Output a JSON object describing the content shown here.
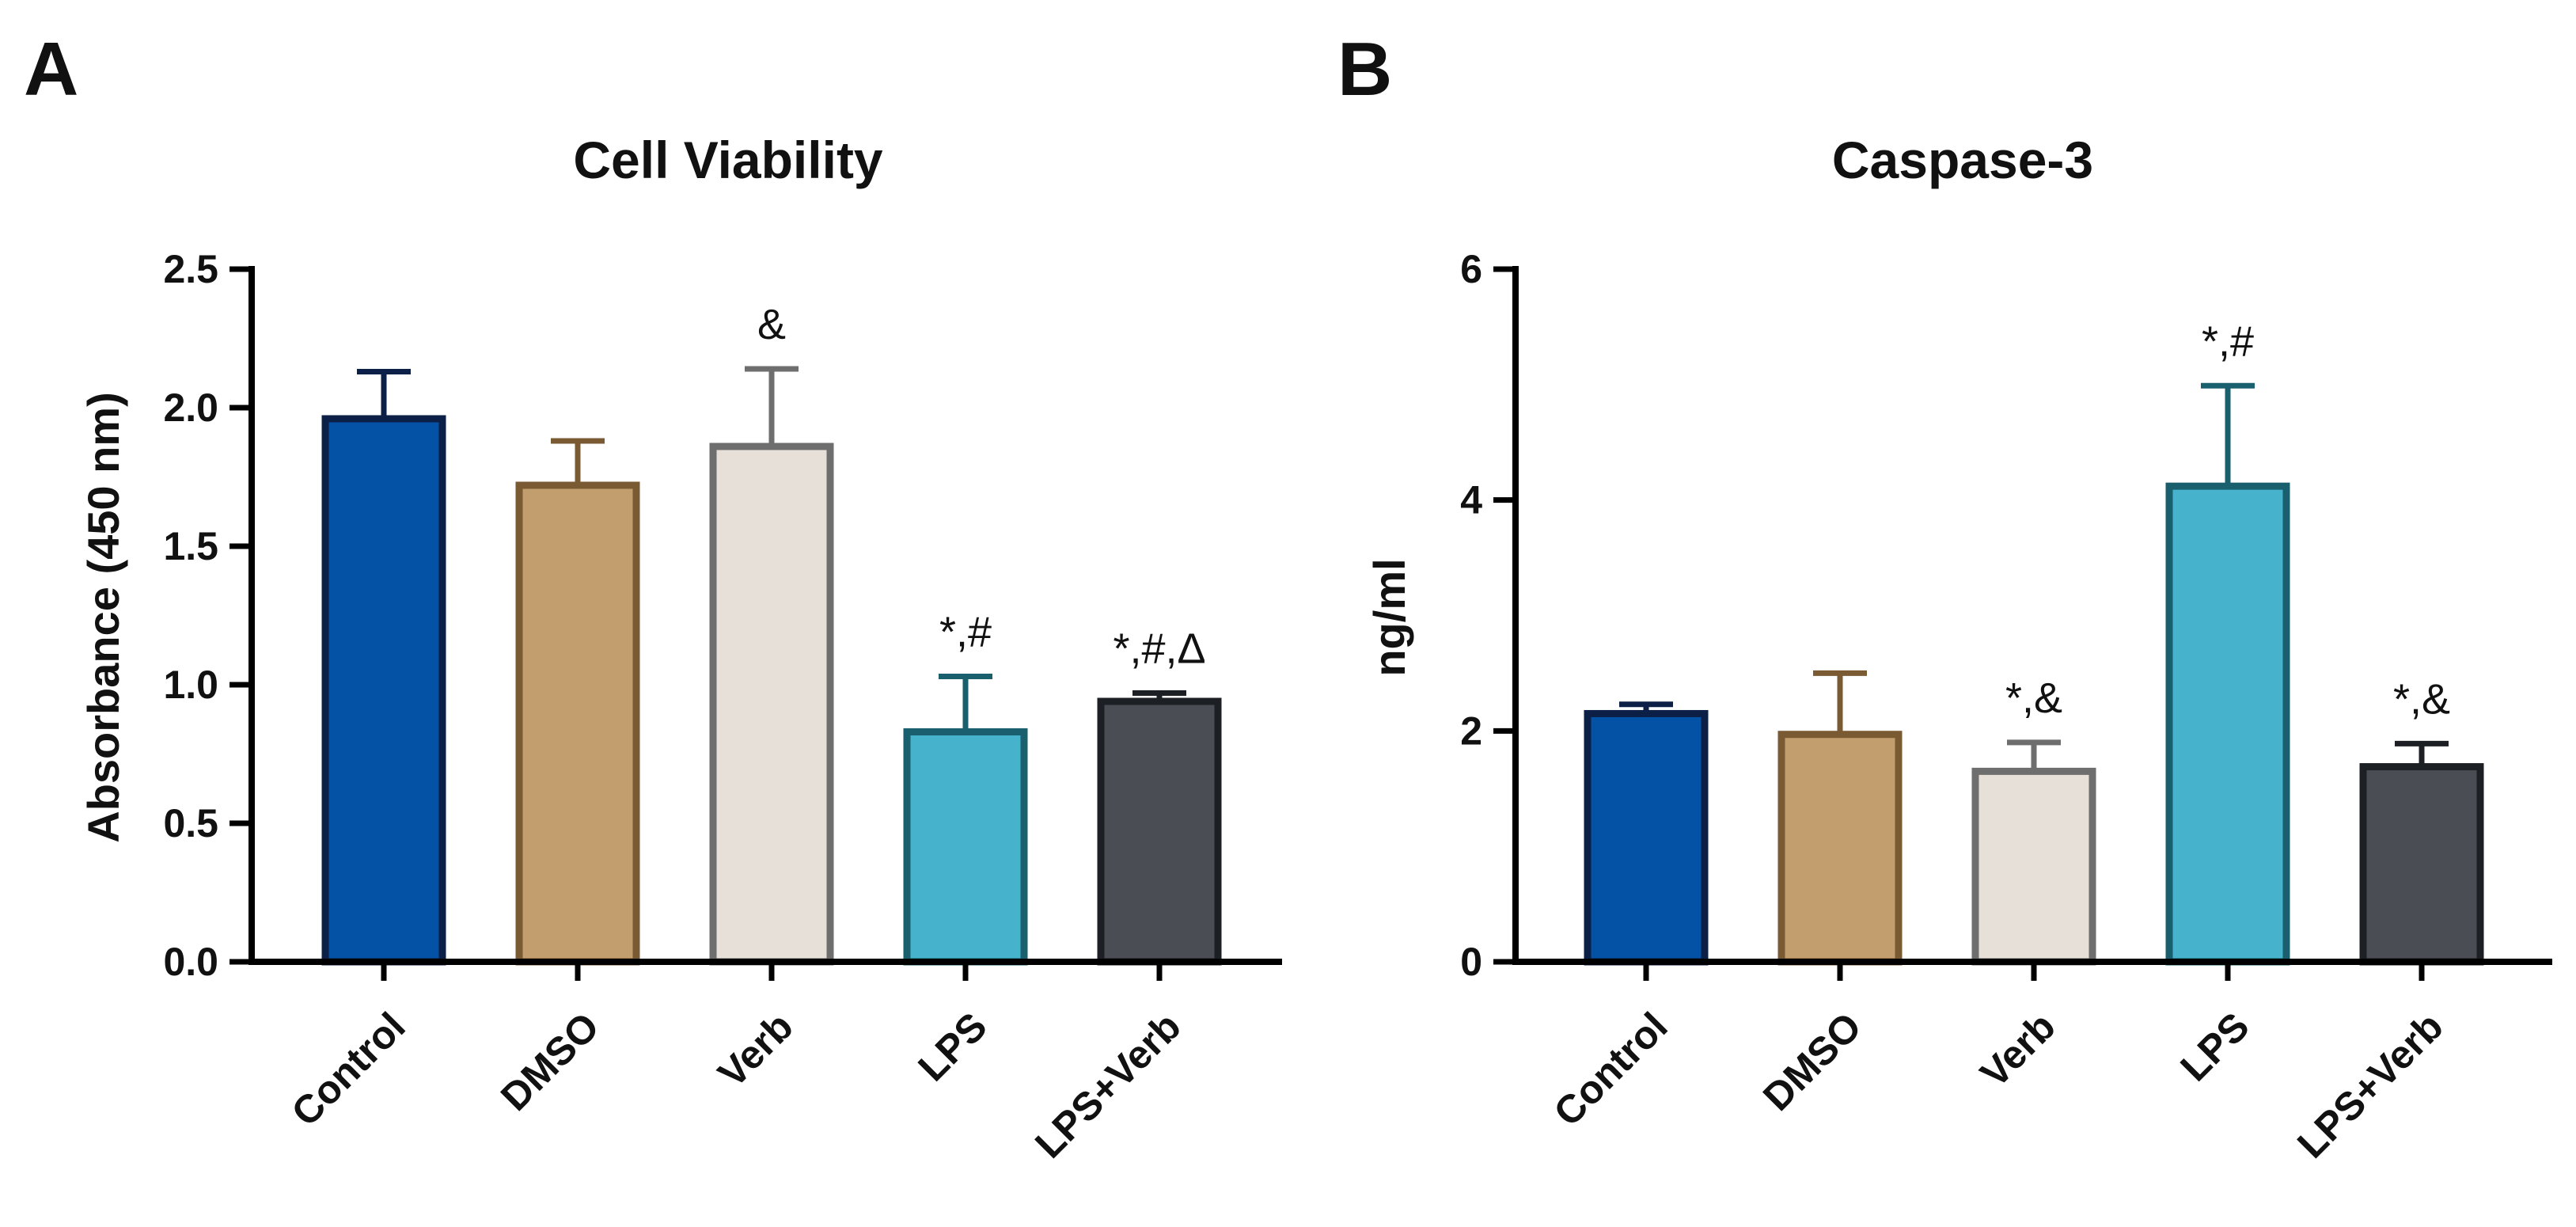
{
  "figure": {
    "panels": [
      "A",
      "B"
    ]
  },
  "chart_data": [
    {
      "panel": "A",
      "type": "bar",
      "title": "Cell Viability",
      "xlabel": "",
      "ylabel": "Absorbance (450 nm)",
      "ylim": [
        0,
        2.5
      ],
      "yticks": [
        0.0,
        0.5,
        1.0,
        1.5,
        2.0,
        2.5
      ],
      "ytick_labels": [
        "0.0",
        "0.5",
        "1.0",
        "1.5",
        "2.0",
        "2.5"
      ],
      "categories": [
        "Control",
        "DMSO",
        "Verb",
        "LPS",
        "LPS+Verb"
      ],
      "values": [
        1.96,
        1.72,
        1.86,
        0.83,
        0.94
      ],
      "errors": [
        0.17,
        0.16,
        0.28,
        0.2,
        0.03
      ],
      "annotations": [
        "",
        "",
        "&",
        "*,#",
        "*,#,Δ"
      ],
      "fill_colors": [
        "#0452A5",
        "#C29D6E",
        "#E6E0D8",
        "#47B2CB",
        "#4A4E54"
      ],
      "edge_colors": [
        "#0B1F47",
        "#7A5A33",
        "#6E6E6E",
        "#1A5F6E",
        "#1C1F23"
      ],
      "grid": false
    },
    {
      "panel": "B",
      "type": "bar",
      "title": "Caspase-3",
      "xlabel": "",
      "ylabel": "ng/ml",
      "ylim": [
        0,
        6
      ],
      "yticks": [
        0,
        2,
        4,
        6
      ],
      "ytick_labels": [
        "0",
        "2",
        "4",
        "6"
      ],
      "categories": [
        "Control",
        "DMSO",
        "Verb",
        "LPS",
        "LPS+Verb"
      ],
      "values": [
        2.15,
        1.97,
        1.65,
        4.12,
        1.69
      ],
      "errors": [
        0.08,
        0.53,
        0.25,
        0.87,
        0.2
      ],
      "annotations": [
        "",
        "",
        "*,&",
        "*,#",
        "*,&"
      ],
      "fill_colors": [
        "#0452A5",
        "#C29D6E",
        "#E6E0D8",
        "#47B2CB",
        "#4A4E54"
      ],
      "edge_colors": [
        "#0B1F47",
        "#7A5A33",
        "#6E6E6E",
        "#1A5F6E",
        "#1C1F23"
      ],
      "grid": false
    }
  ]
}
